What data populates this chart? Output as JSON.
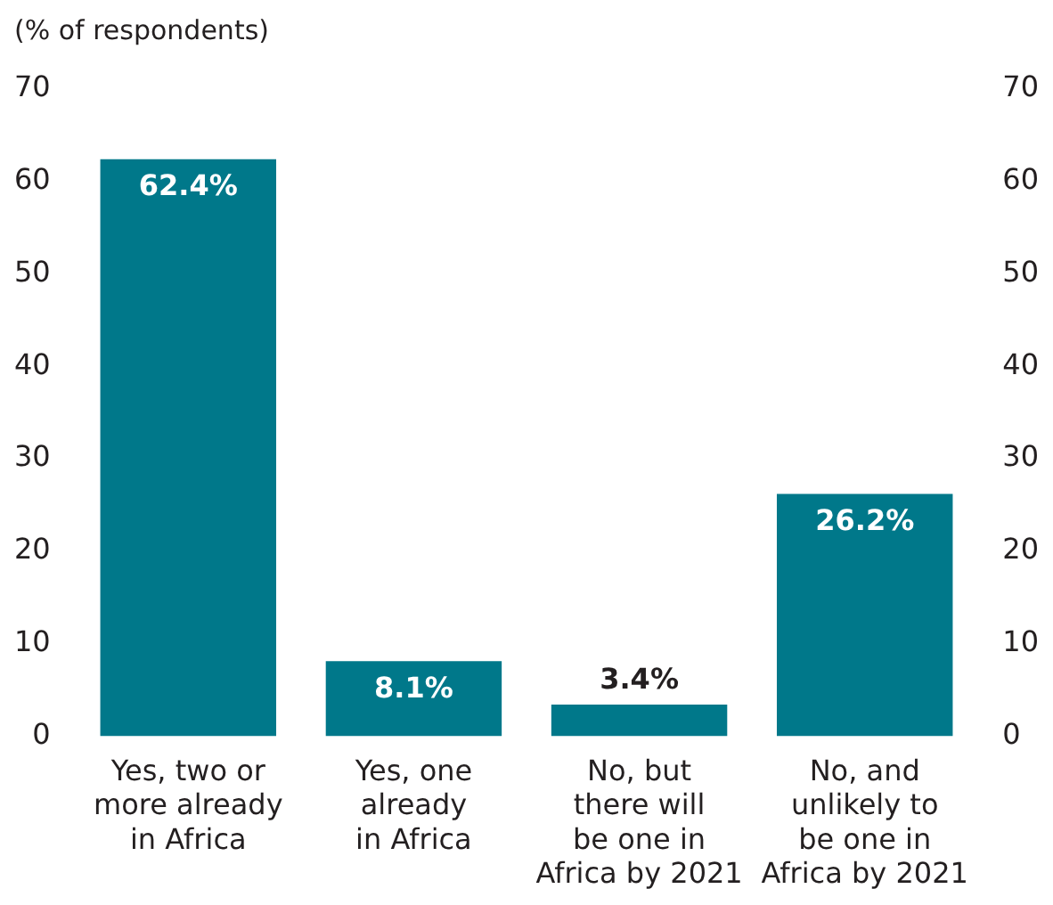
{
  "chart_data": {
    "type": "bar",
    "ylabel": "(% of respondents)",
    "categories": [
      "Yes, two or\nmore already\nin Africa",
      "Yes, one\nalready\nin Africa",
      "No, but\nthere will\nbe one in\nAfrica by 2021",
      "No, and\nunlikely to\nbe one in\nAfrica by 2021"
    ],
    "values": [
      62.4,
      8.1,
      3.4,
      26.2
    ],
    "color": "#00788a",
    "value_labels": [
      "62.4%",
      "8.1%",
      "3.4%",
      "26.2%"
    ],
    "ylim": [
      0,
      70
    ],
    "yticks": [
      0,
      10,
      20,
      30,
      40,
      50,
      60,
      70
    ],
    "y2lim": [
      0,
      70
    ],
    "y2ticks": [
      0,
      10,
      20,
      30,
      40,
      50,
      60,
      70
    ],
    "grid": false,
    "legend": false
  }
}
